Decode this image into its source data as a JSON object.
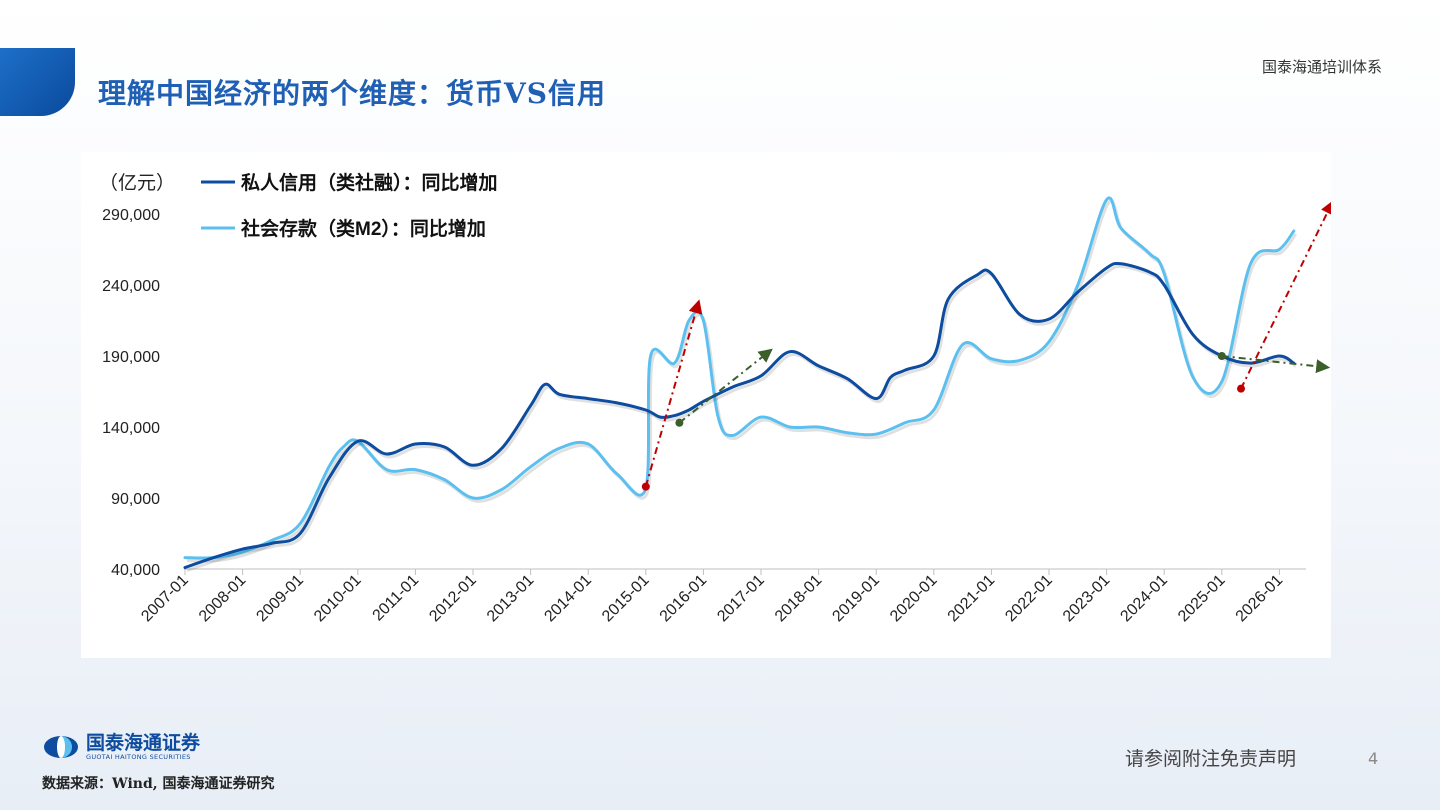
{
  "header": {
    "title": "理解中国经济的两个维度：货币VS信用",
    "brand": "国泰海通培训体系"
  },
  "footer": {
    "logo_name": "国泰海通证券",
    "logo_en": "GUOTAI HAITONG SECURITIES",
    "source": "数据来源：Wind, 国泰海通证券研究",
    "disclaimer": "请参阅附注免责声明",
    "page": "4"
  },
  "colors": {
    "title": "#1f5fb4",
    "credit_line": "#0d4c9e",
    "deposit_line": "#5bc0f0",
    "red_arrow": "#c00000",
    "green_arrow": "#3b5e2b"
  },
  "chart_data": {
    "type": "line",
    "unit_label": "（亿元）",
    "ylim": [
      40000,
      290000
    ],
    "yticks": [
      "290,000",
      "240,000",
      "190,000",
      "140,000",
      "90,000",
      "40,000"
    ],
    "ytick_values": [
      290000,
      240000,
      190000,
      140000,
      90000,
      40000
    ],
    "x_categories": [
      "2007-01",
      "2008-01",
      "2009-01",
      "2010-01",
      "2011-01",
      "2012-01",
      "2013-01",
      "2014-01",
      "2015-01",
      "2016-01",
      "2017-01",
      "2018-01",
      "2019-01",
      "2020-01",
      "2021-01",
      "2022-01",
      "2023-01",
      "2024-01",
      "2025-01",
      "2026-01"
    ],
    "grid": false,
    "legend_position": "top-left",
    "series": [
      {
        "name": "私人信用（类社融）：同比增加",
        "color": "#0d4c9e",
        "points": [
          [
            "2007-01",
            41000
          ],
          [
            "2007-07",
            48000
          ],
          [
            "2008-01",
            54000
          ],
          [
            "2008-07",
            58000
          ],
          [
            "2009-01",
            65000
          ],
          [
            "2009-07",
            104000
          ],
          [
            "2010-01",
            130000
          ],
          [
            "2010-07",
            121000
          ],
          [
            "2011-01",
            128000
          ],
          [
            "2011-07",
            126000
          ],
          [
            "2012-01",
            113000
          ],
          [
            "2012-07",
            125000
          ],
          [
            "2013-01",
            155000
          ],
          [
            "2013-04",
            170000
          ],
          [
            "2013-07",
            163000
          ],
          [
            "2014-01",
            160000
          ],
          [
            "2014-07",
            157000
          ],
          [
            "2015-01",
            152000
          ],
          [
            "2015-04",
            147000
          ],
          [
            "2015-07",
            148000
          ],
          [
            "2015-10",
            152000
          ],
          [
            "2016-01",
            158000
          ],
          [
            "2016-07",
            168000
          ],
          [
            "2017-01",
            176000
          ],
          [
            "2017-07",
            193000
          ],
          [
            "2018-01",
            183000
          ],
          [
            "2018-07",
            174000
          ],
          [
            "2019-01",
            160000
          ],
          [
            "2019-04",
            175000
          ],
          [
            "2019-07",
            180000
          ],
          [
            "2020-01",
            190000
          ],
          [
            "2020-04",
            230000
          ],
          [
            "2020-10",
            247000
          ],
          [
            "2021-01",
            248000
          ],
          [
            "2021-07",
            219000
          ],
          [
            "2022-01",
            216000
          ],
          [
            "2022-07",
            235000
          ],
          [
            "2023-01",
            252000
          ],
          [
            "2023-04",
            255000
          ],
          [
            "2023-10",
            249000
          ],
          [
            "2024-01",
            240000
          ],
          [
            "2024-07",
            205000
          ],
          [
            "2025-01",
            190000
          ],
          [
            "2025-07",
            185000
          ],
          [
            "2026-01",
            190000
          ],
          [
            "2026-04",
            185000
          ]
        ]
      },
      {
        "name": "社会存款（类M2）：同比增加",
        "color": "#5bc0f0",
        "points": [
          [
            "2007-01",
            48000
          ],
          [
            "2007-07",
            48000
          ],
          [
            "2008-01",
            52000
          ],
          [
            "2008-07",
            60000
          ],
          [
            "2009-01",
            72000
          ],
          [
            "2009-07",
            112000
          ],
          [
            "2009-10",
            126000
          ],
          [
            "2010-01",
            130000
          ],
          [
            "2010-07",
            110000
          ],
          [
            "2011-01",
            110000
          ],
          [
            "2011-07",
            103000
          ],
          [
            "2012-01",
            90000
          ],
          [
            "2012-07",
            96000
          ],
          [
            "2013-01",
            112000
          ],
          [
            "2013-07",
            125000
          ],
          [
            "2014-01",
            128000
          ],
          [
            "2014-07",
            107000
          ],
          [
            "2015-01",
            97000
          ],
          [
            "2015-02",
            190000
          ],
          [
            "2015-07",
            185000
          ],
          [
            "2015-10",
            215000
          ],
          [
            "2016-01",
            215000
          ],
          [
            "2016-04",
            148000
          ],
          [
            "2016-07",
            134000
          ],
          [
            "2017-01",
            147000
          ],
          [
            "2017-07",
            140000
          ],
          [
            "2018-01",
            140000
          ],
          [
            "2018-07",
            136000
          ],
          [
            "2019-01",
            135000
          ],
          [
            "2019-07",
            143000
          ],
          [
            "2020-01",
            152000
          ],
          [
            "2020-07",
            198000
          ],
          [
            "2021-01",
            188000
          ],
          [
            "2021-07",
            187000
          ],
          [
            "2022-01",
            200000
          ],
          [
            "2022-07",
            240000
          ],
          [
            "2023-01",
            300000
          ],
          [
            "2023-04",
            280000
          ],
          [
            "2023-10",
            262000
          ],
          [
            "2024-01",
            248000
          ],
          [
            "2024-07",
            175000
          ],
          [
            "2025-01",
            172000
          ],
          [
            "2025-07",
            255000
          ],
          [
            "2026-01",
            265000
          ],
          [
            "2026-04",
            278000
          ]
        ]
      }
    ],
    "annotations": [
      {
        "type": "arrow",
        "style": "dash-dot",
        "color": "#c00000",
        "from": [
          "2015-01",
          98000
        ],
        "to": [
          "2015-12",
          228000
        ]
      },
      {
        "type": "arrow",
        "style": "dash-dot",
        "color": "#3b5e2b",
        "from": [
          "2015-08",
          143000
        ],
        "to": [
          "2017-03",
          194000
        ]
      },
      {
        "type": "arrow",
        "style": "dash-dot",
        "color": "#c00000",
        "from": [
          "2025-05",
          167000
        ],
        "to": [
          "2026-12",
          298000
        ]
      },
      {
        "type": "arrow",
        "style": "dash-dot",
        "color": "#3b5e2b",
        "from": [
          "2025-01",
          190000
        ],
        "to": [
          "2026-11",
          182000
        ]
      }
    ]
  }
}
